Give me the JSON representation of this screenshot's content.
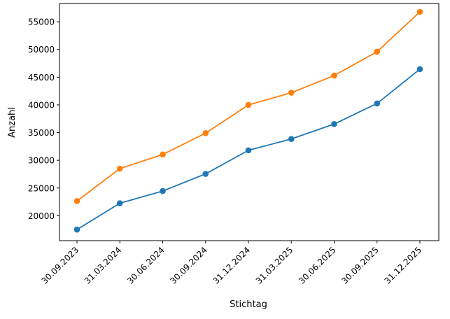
{
  "chart_data": {
    "type": "line",
    "title": "",
    "xlabel": "Stichtag",
    "ylabel": "Anzahl",
    "categories": [
      "30.09.2023",
      "31.03.2024",
      "30.06.2024",
      "30.09.2024",
      "31.12.2024",
      "31.03.2025",
      "30.06.2025",
      "30.09.2025",
      "31.12.2025"
    ],
    "yticks": [
      "20000",
      "25000",
      "30000",
      "35000",
      "40000",
      "45000",
      "50000",
      "55000"
    ],
    "ylim": [
      15500,
      58300
    ],
    "grid": false,
    "legend": "none",
    "series": [
      {
        "color": "#1f77b4",
        "values": [
          17500,
          22250,
          24450,
          27550,
          31800,
          33850,
          36550,
          40250,
          46450
        ]
      },
      {
        "color": "#ff7f0e",
        "values": [
          22650,
          28500,
          31050,
          34900,
          40000,
          42200,
          45300,
          49600,
          56800
        ]
      }
    ]
  }
}
